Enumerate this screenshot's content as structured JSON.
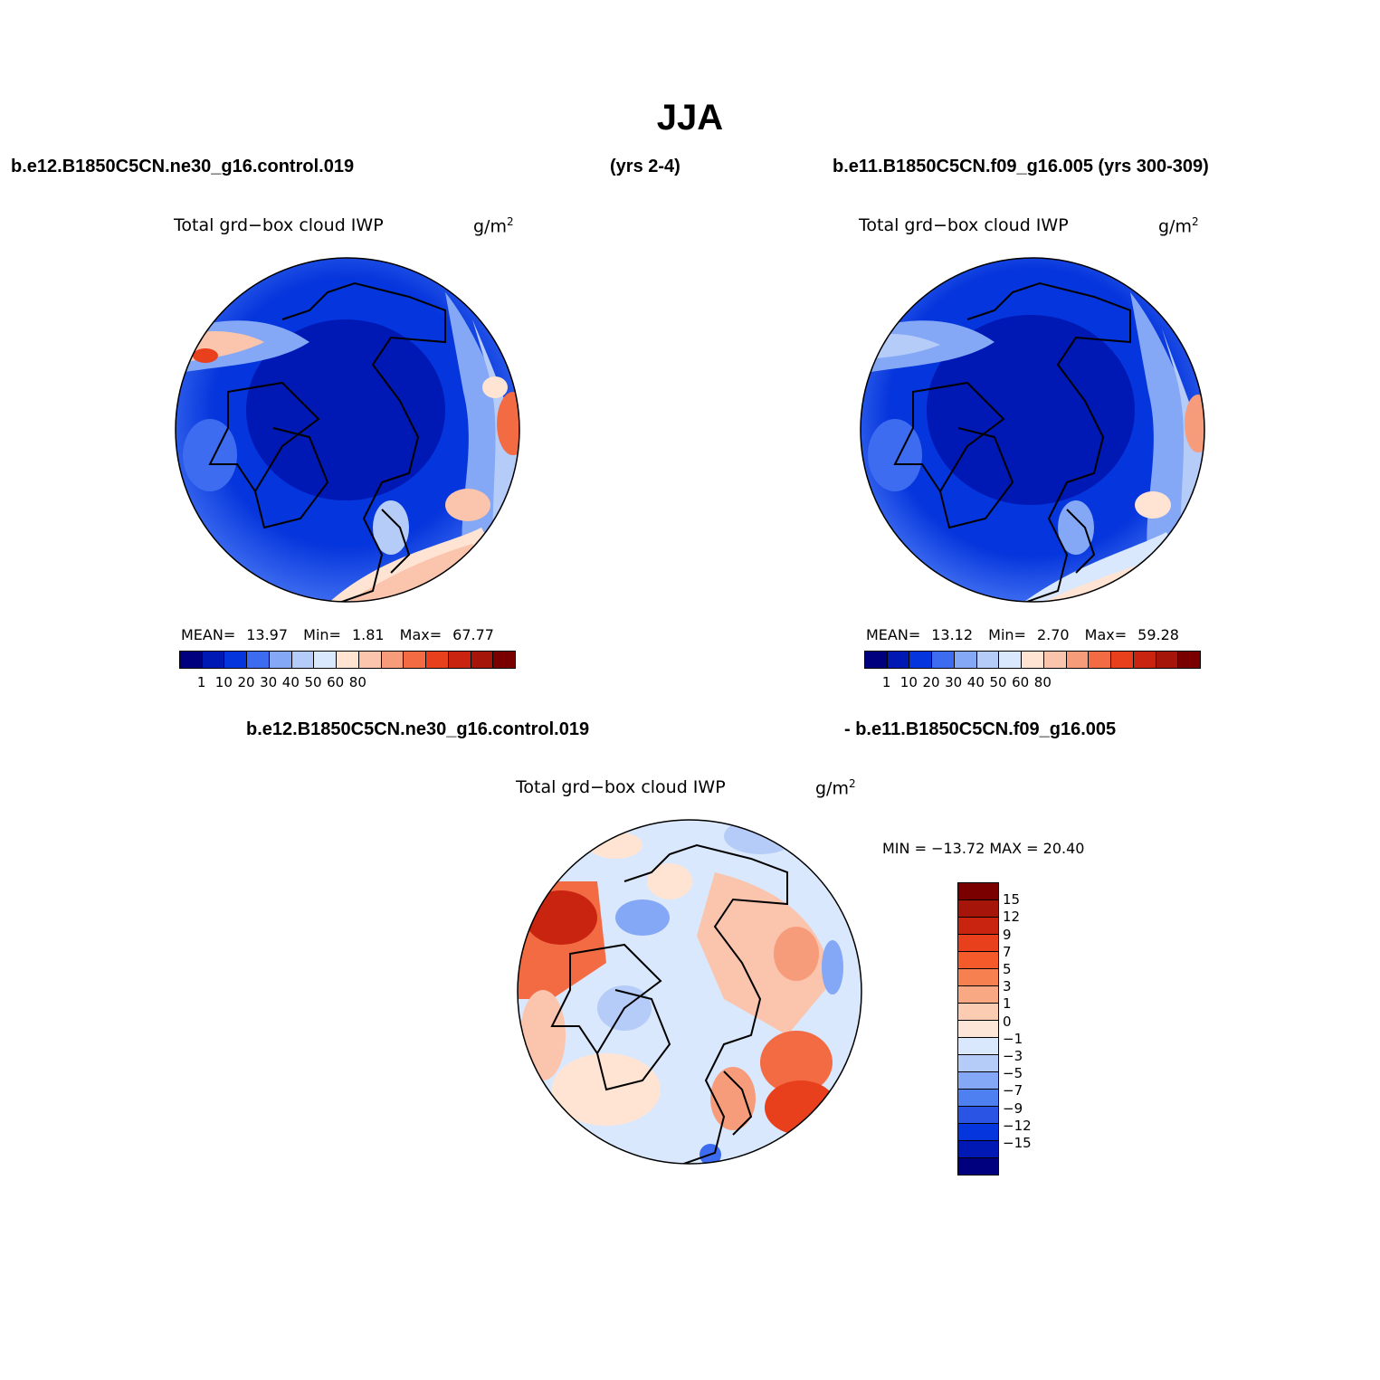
{
  "title": "JJA",
  "headers": {
    "left": "b.e12.B1850C5CN.ne30_g16.control.019",
    "middle": "(yrs 2-4)",
    "right": "b.e11.B1850C5CN.f09_g16.005 (yrs 300-309)",
    "diff_left": "b.e12.B1850C5CN.ne30_g16.control.019",
    "diff_right": "- b.e11.B1850C5CN.f09_g16.005"
  },
  "panels": [
    {
      "id": "case1",
      "title": "Total grd−box cloud IWP",
      "unit": "g/m",
      "unit_exp": "2",
      "stats": {
        "mean_label": "MEAN=",
        "mean": "13.97",
        "min_label": "Min=",
        "min": "1.81",
        "max_label": "Max=",
        "max": "67.77"
      }
    },
    {
      "id": "case2",
      "title": "Total grd−box cloud IWP",
      "unit": "g/m",
      "unit_exp": "2",
      "stats": {
        "mean_label": "MEAN=",
        "mean": "13.12",
        "min_label": "Min=",
        "min": "2.70",
        "max_label": "Max=",
        "max": "59.28"
      }
    },
    {
      "id": "diff",
      "title": "Total grd−box cloud IWP",
      "unit": "g/m",
      "unit_exp": "2",
      "minmax": "MIN = −13.72 MAX =  20.40"
    }
  ],
  "colorbar_abs": {
    "labels": [
      "1",
      "10",
      "20",
      "30",
      "40",
      "50",
      "60",
      "80"
    ],
    "colors": [
      "#00007f",
      "#0018b4",
      "#0535dc",
      "#3d6cf0",
      "#84a8f5",
      "#b5cbf8",
      "#d9e8fc",
      "#ffe4d4",
      "#fbc4ac",
      "#f69c7b",
      "#f26b43",
      "#e8401c",
      "#c9240f",
      "#a5150a",
      "#7a0000"
    ]
  },
  "colorbar_diff": {
    "labels": [
      "15",
      "12",
      "9",
      "7",
      "5",
      "3",
      "1",
      "0",
      "−1",
      "−3",
      "−5",
      "−7",
      "−9",
      "−12",
      "−15"
    ],
    "colors": [
      "#7a0000",
      "#a5150a",
      "#c9240f",
      "#e8401c",
      "#f45a2a",
      "#f6804f",
      "#f8a883",
      "#fbcbb2",
      "#fde6d8",
      "#d9e8fc",
      "#b5cbf8",
      "#84a8f5",
      "#4e80f2",
      "#2a55e4",
      "#0535dc",
      "#0018b4",
      "#00007f"
    ]
  }
}
